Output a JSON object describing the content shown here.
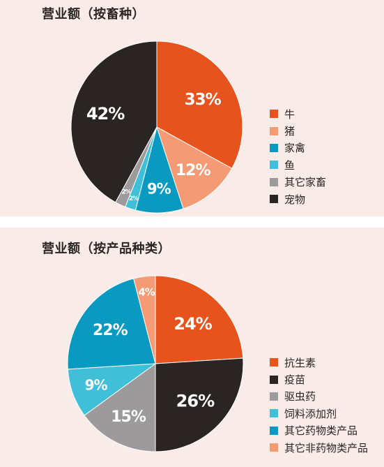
{
  "chart_data": [
    {
      "type": "pie",
      "title": "营业额（按畜种）",
      "categories": [
        "牛",
        "猪",
        "家禽",
        "鱼",
        "其它家畜",
        "宠物"
      ],
      "values": [
        33,
        12,
        9,
        2,
        2,
        42
      ],
      "data_labels": [
        "33%",
        "12%",
        "9%",
        "2%",
        "2%",
        "42%"
      ],
      "colors": [
        "#e6531c",
        "#f49a74",
        "#0a9ac1",
        "#40bfd9",
        "#9c9a9b",
        "#2a2423"
      ],
      "start_angle": "12 o'clock",
      "direction": "clockwise",
      "legend_position": "right"
    },
    {
      "type": "pie",
      "title": "营业额（按产品种类）",
      "categories": [
        "抗生素",
        "疫苗",
        "驱虫药",
        "饲料添加剂",
        "其它药物类产品",
        "其它非药物类产品"
      ],
      "values": [
        24,
        26,
        15,
        9,
        22,
        4
      ],
      "data_labels": [
        "24%",
        "26%",
        "15%",
        "9%",
        "22%",
        "4%"
      ],
      "colors": [
        "#e6531c",
        "#2a2423",
        "#9c9a9b",
        "#40bfd9",
        "#0a9ac1",
        "#f49a74"
      ],
      "start_angle": "12 o'clock",
      "direction": "clockwise",
      "legend_position": "right"
    }
  ]
}
